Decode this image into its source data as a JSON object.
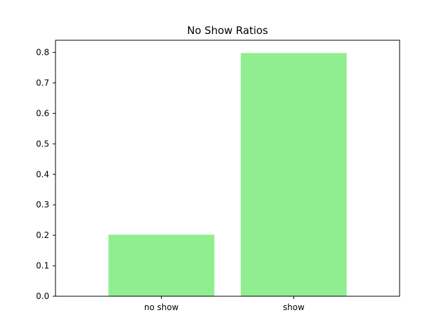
{
  "chart_data": {
    "type": "bar",
    "title": "No Show Ratios",
    "xlabel": "",
    "ylabel": "",
    "categories": [
      "no show",
      "show"
    ],
    "values": [
      0.202,
      0.798
    ],
    "ylim": [
      0,
      0.84
    ],
    "yticks": [
      0.0,
      0.1,
      0.2,
      0.3,
      0.4,
      0.5,
      0.6,
      0.7,
      0.8
    ],
    "ytick_labels": [
      "0.0",
      "0.1",
      "0.2",
      "0.3",
      "0.4",
      "0.5",
      "0.6",
      "0.7",
      "0.8"
    ],
    "bar_color": "#90ee90",
    "grid": false,
    "legend": "none"
  }
}
